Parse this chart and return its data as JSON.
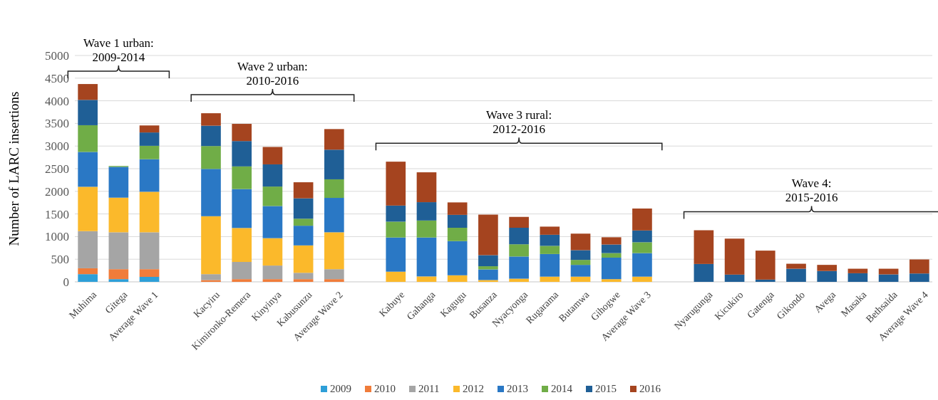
{
  "chart_data": {
    "type": "bar",
    "stacked": true,
    "ylabel": "Number of LARC insertions",
    "categories": [
      "Muhima",
      "Gitega",
      "Average Wave 1",
      null,
      "Kacyiru",
      "Kimironko-Remera",
      "Kinyinya",
      "Kabusunzu",
      "Average Wave 2",
      null,
      "Kabuye",
      "Gahanga",
      "Kagugu",
      "Busanza",
      "Nyacyonga",
      "Rugarama",
      "Butamwa",
      "Gihogwe",
      "Average Wave  3",
      null,
      "Nyarugunga",
      "Kicukiro",
      "Gatenga",
      "Gikondo",
      "Avega",
      "Masaka",
      "Bethsaida",
      "Average Wave 4"
    ],
    "series": [
      {
        "name": "2009",
        "color": "#2e9fd8",
        "values": [
          170,
          60,
          110,
          null,
          0,
          0,
          0,
          0,
          0,
          null,
          0,
          0,
          0,
          0,
          0,
          0,
          0,
          0,
          0,
          null,
          0,
          0,
          0,
          0,
          0,
          0,
          0,
          0
        ]
      },
      {
        "name": "2010",
        "color": "#f07c3a",
        "values": [
          130,
          220,
          170,
          null,
          40,
          60,
          60,
          60,
          60,
          null,
          0,
          0,
          0,
          0,
          0,
          0,
          0,
          0,
          0,
          null,
          0,
          0,
          0,
          0,
          0,
          0,
          0,
          0
        ]
      },
      {
        "name": "2011",
        "color": "#a5a5a5",
        "values": [
          820,
          815,
          815,
          null,
          130,
          380,
          300,
          140,
          220,
          null,
          0,
          0,
          0,
          0,
          0,
          0,
          0,
          0,
          0,
          null,
          0,
          0,
          0,
          0,
          0,
          0,
          0,
          0
        ]
      },
      {
        "name": "2012",
        "color": "#fbb92b",
        "values": [
          980,
          765,
          895,
          null,
          1280,
          750,
          605,
          605,
          815,
          null,
          225,
          120,
          145,
          40,
          70,
          115,
          115,
          60,
          115,
          null,
          0,
          0,
          0,
          0,
          0,
          0,
          0,
          0
        ]
      },
      {
        "name": "2013",
        "color": "#2a78c5",
        "values": [
          770,
          680,
          720,
          null,
          1045,
          860,
          710,
          435,
          760,
          null,
          755,
          860,
          755,
          235,
          490,
          500,
          260,
          475,
          520,
          null,
          0,
          0,
          0,
          0,
          0,
          0,
          0,
          0
        ]
      },
      {
        "name": "2014",
        "color": "#70ad47",
        "values": [
          590,
          20,
          295,
          null,
          505,
          500,
          430,
          155,
          410,
          null,
          350,
          375,
          295,
          70,
          270,
          180,
          110,
          100,
          240,
          null,
          0,
          0,
          0,
          0,
          0,
          0,
          0,
          0
        ]
      },
      {
        "name": "2015",
        "color": "#1f5f96",
        "values": [
          560,
          0,
          295,
          null,
          450,
          560,
          490,
          450,
          655,
          null,
          355,
          405,
          285,
          245,
          365,
          245,
          215,
          190,
          260,
          null,
          395,
          160,
          50,
          290,
          240,
          190,
          165,
          185
        ]
      },
      {
        "name": "2016",
        "color": "#a5441f",
        "values": [
          350,
          0,
          155,
          null,
          275,
          380,
          385,
          355,
          455,
          null,
          970,
          660,
          275,
          895,
          240,
          180,
          365,
          160,
          485,
          null,
          745,
          795,
          640,
          110,
          135,
          100,
          125,
          310
        ]
      }
    ],
    "ylim": [
      0,
      5000
    ],
    "yticks": [
      0,
      500,
      1000,
      1500,
      2000,
      2500,
      3000,
      3500,
      4000,
      4500,
      5000
    ],
    "grid": "y",
    "legend": "bottom",
    "annotations": [
      "Wave 1 urban: 2009-2014",
      "Wave 2 urban: 2010-2016",
      "Wave 3 rural: 2012-2016",
      "Wave 4: 2015-2016"
    ]
  }
}
